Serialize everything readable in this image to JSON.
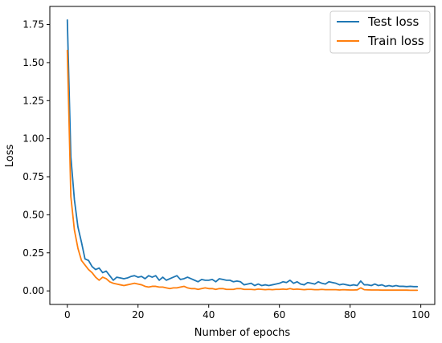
{
  "chart_data": {
    "type": "line",
    "title": "",
    "xlabel": "Number of epochs",
    "ylabel": "Loss",
    "xlim": [
      -4.95,
      103.95
    ],
    "ylim": [
      -0.089,
      1.869
    ],
    "xticks": [
      0,
      20,
      40,
      60,
      80,
      100
    ],
    "xtick_labels": [
      "0",
      "20",
      "40",
      "60",
      "80",
      "100"
    ],
    "yticks": [
      0.0,
      0.25,
      0.5,
      0.75,
      1.0,
      1.25,
      1.5,
      1.75
    ],
    "ytick_labels": [
      "0.00",
      "0.25",
      "0.50",
      "0.75",
      "1.00",
      "1.25",
      "1.50",
      "1.75"
    ],
    "grid": false,
    "legend_position": "top-right",
    "x": [
      0,
      1,
      2,
      3,
      4,
      5,
      6,
      7,
      8,
      9,
      10,
      11,
      12,
      13,
      14,
      15,
      16,
      17,
      18,
      19,
      20,
      21,
      22,
      23,
      24,
      25,
      26,
      27,
      28,
      29,
      30,
      31,
      32,
      33,
      34,
      35,
      36,
      37,
      38,
      39,
      40,
      41,
      42,
      43,
      44,
      45,
      46,
      47,
      48,
      49,
      50,
      51,
      52,
      53,
      54,
      55,
      56,
      57,
      58,
      59,
      60,
      61,
      62,
      63,
      64,
      65,
      66,
      67,
      68,
      69,
      70,
      71,
      72,
      73,
      74,
      75,
      76,
      77,
      78,
      79,
      80,
      81,
      82,
      83,
      84,
      85,
      86,
      87,
      88,
      89,
      90,
      91,
      92,
      93,
      94,
      95,
      96,
      97,
      98,
      99
    ],
    "series": [
      {
        "name": "Test loss",
        "color": "#1f77b4",
        "values": [
          1.78,
          0.88,
          0.6,
          0.42,
          0.32,
          0.21,
          0.2,
          0.16,
          0.14,
          0.15,
          0.12,
          0.13,
          0.1,
          0.07,
          0.09,
          0.085,
          0.08,
          0.085,
          0.095,
          0.1,
          0.09,
          0.095,
          0.08,
          0.1,
          0.09,
          0.1,
          0.07,
          0.09,
          0.07,
          0.08,
          0.09,
          0.1,
          0.075,
          0.08,
          0.09,
          0.08,
          0.07,
          0.06,
          0.075,
          0.07,
          0.07,
          0.075,
          0.06,
          0.08,
          0.075,
          0.07,
          0.07,
          0.06,
          0.065,
          0.06,
          0.04,
          0.045,
          0.05,
          0.035,
          0.045,
          0.035,
          0.04,
          0.035,
          0.04,
          0.045,
          0.05,
          0.06,
          0.055,
          0.07,
          0.05,
          0.06,
          0.045,
          0.04,
          0.055,
          0.05,
          0.045,
          0.06,
          0.05,
          0.045,
          0.06,
          0.055,
          0.05,
          0.04,
          0.045,
          0.04,
          0.035,
          0.04,
          0.035,
          0.065,
          0.04,
          0.04,
          0.035,
          0.045,
          0.035,
          0.04,
          0.03,
          0.035,
          0.03,
          0.035,
          0.03,
          0.03,
          0.028,
          0.03,
          0.028,
          0.028
        ]
      },
      {
        "name": "Train loss",
        "color": "#ff7f0e",
        "values": [
          1.58,
          0.62,
          0.4,
          0.28,
          0.2,
          0.17,
          0.14,
          0.12,
          0.09,
          0.07,
          0.09,
          0.08,
          0.06,
          0.05,
          0.045,
          0.04,
          0.035,
          0.04,
          0.045,
          0.05,
          0.045,
          0.04,
          0.03,
          0.025,
          0.03,
          0.03,
          0.025,
          0.025,
          0.02,
          0.015,
          0.02,
          0.02,
          0.025,
          0.03,
          0.02,
          0.015,
          0.015,
          0.01,
          0.015,
          0.02,
          0.015,
          0.015,
          0.01,
          0.015,
          0.015,
          0.01,
          0.01,
          0.01,
          0.015,
          0.015,
          0.01,
          0.01,
          0.01,
          0.008,
          0.012,
          0.01,
          0.008,
          0.01,
          0.008,
          0.01,
          0.01,
          0.012,
          0.01,
          0.015,
          0.01,
          0.012,
          0.01,
          0.008,
          0.01,
          0.01,
          0.008,
          0.008,
          0.01,
          0.008,
          0.008,
          0.008,
          0.008,
          0.006,
          0.008,
          0.007,
          0.006,
          0.006,
          0.007,
          0.02,
          0.008,
          0.007,
          0.006,
          0.006,
          0.006,
          0.005,
          0.005,
          0.005,
          0.005,
          0.005,
          0.005,
          0.005,
          0.005,
          0.004,
          0.004,
          0.004
        ]
      }
    ]
  }
}
